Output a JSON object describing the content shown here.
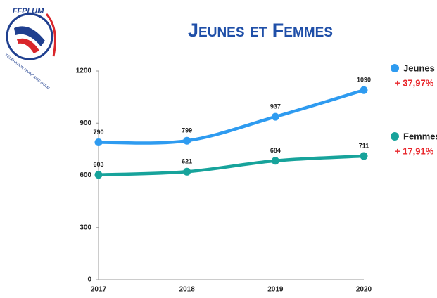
{
  "logo": {
    "name": "FFPLUM",
    "subtitle": "FÉDÉRATION FRANÇAISE D'ULM"
  },
  "chart_data": {
    "type": "line",
    "title": "Jeunes et Femmes",
    "categories": [
      "2017",
      "2018",
      "2019",
      "2020"
    ],
    "series": [
      {
        "name": "Jeunes",
        "color": "#2e9bf0",
        "values": [
          790,
          799,
          937,
          1090
        ],
        "change": "+ 37,97%"
      },
      {
        "name": "Femmes",
        "color": "#17a39b",
        "values": [
          603,
          621,
          684,
          711
        ],
        "change": "+ 17,91%"
      }
    ],
    "change_color": "#e8262b",
    "ylim": [
      0,
      1200
    ],
    "yticks": [
      0,
      300,
      600,
      900,
      1200
    ],
    "grid": false
  }
}
